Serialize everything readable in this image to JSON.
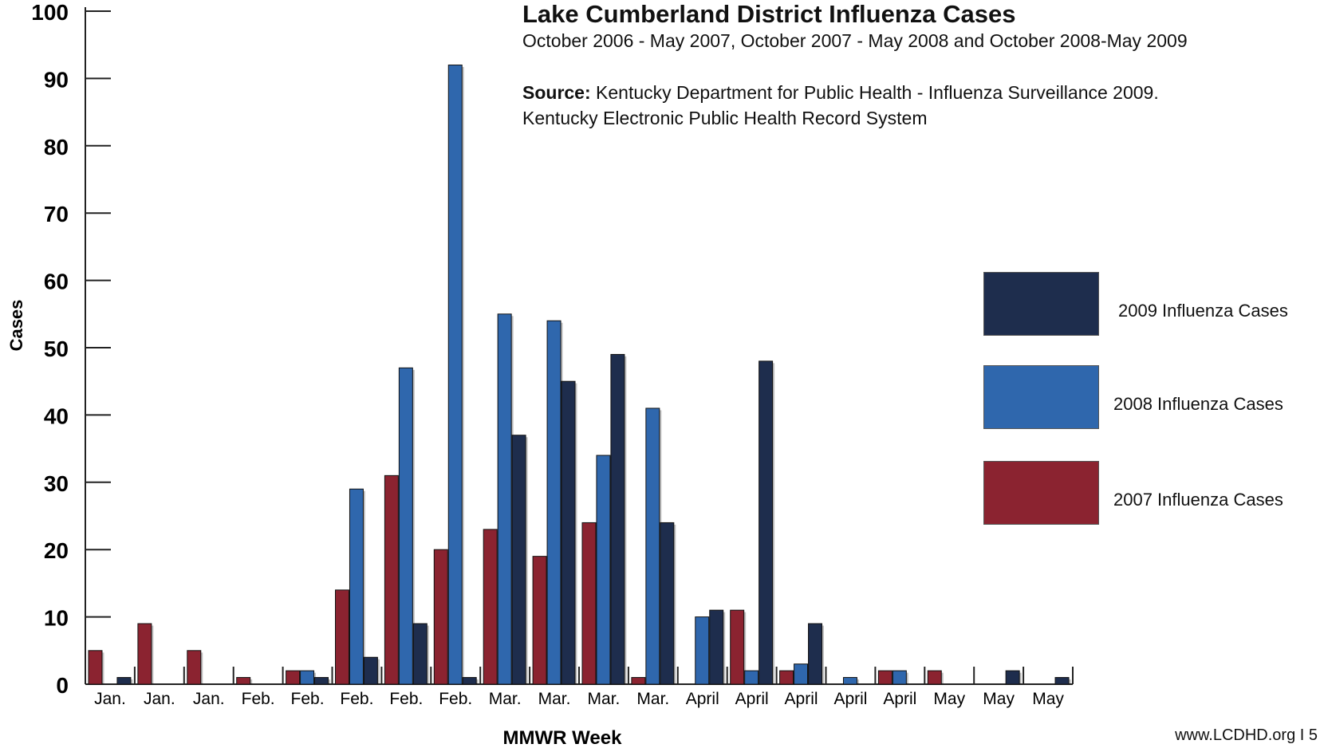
{
  "chart_data": {
    "type": "bar",
    "title": "Lake Cumberland District Influenza Cases",
    "subtitle": "October 2006 - May 2007, October 2007 - May 2008 and October 2008-May 2009",
    "source_label": "Source:",
    "source_text": "Kentucky Department for Public Health - Influenza Surveillance 2009.",
    "source_text_2": "Kentucky Electronic Public Health Record System",
    "xlabel": "MMWR Week",
    "ylabel": "Cases",
    "ylim": [
      0,
      100
    ],
    "yticks": [
      0,
      10,
      20,
      30,
      40,
      50,
      60,
      70,
      80,
      90,
      100
    ],
    "grid": false,
    "legend_position": "right",
    "categories": [
      "Jan.",
      "Jan.",
      "Jan.",
      "Feb.",
      "Feb.",
      "Feb.",
      "Feb.",
      "Feb.",
      "Mar.",
      "Mar.",
      "Mar.",
      "Mar.",
      "April",
      "April",
      "April",
      "April",
      "April",
      "May",
      "May",
      "May"
    ],
    "series": [
      {
        "name": "2007 Influenza Cases",
        "color": "#8b2330",
        "values": [
          5,
          9,
          5,
          1,
          2,
          14,
          31,
          20,
          23,
          19,
          24,
          1,
          0,
          11,
          2,
          0,
          2,
          2,
          0,
          0
        ]
      },
      {
        "name": "2008 Influenza Cases",
        "color": "#2f67ad",
        "values": [
          0,
          0,
          0,
          0,
          2,
          29,
          47,
          92,
          55,
          54,
          34,
          41,
          10,
          2,
          3,
          1,
          2,
          0,
          0,
          0
        ]
      },
      {
        "name": "2009 Influenza Cases",
        "color": "#1e2d4d",
        "values": [
          1,
          0,
          0,
          0,
          1,
          4,
          9,
          1,
          37,
          45,
          49,
          24,
          11,
          48,
          9,
          0,
          0,
          0,
          2,
          1
        ]
      }
    ],
    "legend_order": [
      2,
      1,
      0
    ]
  },
  "footer": "www.LCDHD.org  I  5"
}
